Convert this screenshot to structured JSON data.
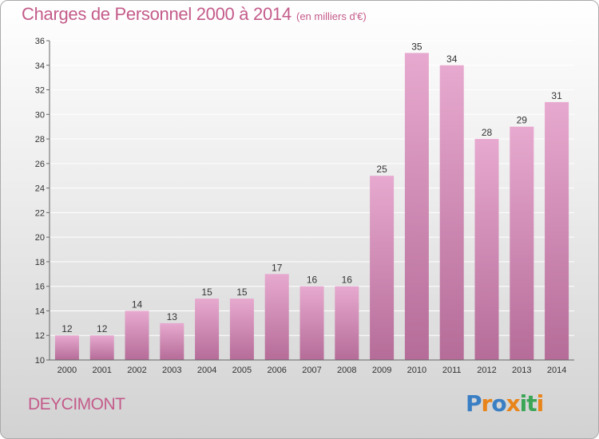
{
  "header": {
    "title": "Charges de Personnel 2000 à 2014",
    "subtitle": "(en milliers d'€)"
  },
  "footer": {
    "place_name": "DEYCIMONT",
    "logo_text": "Proxiti",
    "logo_colors": [
      "#3a7fc4",
      "#e8841a",
      "#3a7fc4",
      "#e8841a",
      "#3aa655",
      "#3aa655",
      "#e8841a"
    ]
  },
  "colors": {
    "bar_top": "#e7a9cf",
    "bar_bottom": "#b56c98",
    "axis": "#666666",
    "grid": "#ffffff",
    "text": "#333333",
    "accent": "#c45b8a"
  },
  "chart_data": {
    "type": "bar",
    "categories": [
      "2000",
      "2001",
      "2002",
      "2003",
      "2004",
      "2005",
      "2006",
      "2007",
      "2008",
      "2009",
      "2010",
      "2011",
      "2012",
      "2013",
      "2014"
    ],
    "values": [
      12,
      12,
      14,
      13,
      15,
      15,
      17,
      16,
      16,
      25,
      35,
      34,
      28,
      29,
      31
    ],
    "title": "Charges de Personnel 2000 à 2014",
    "subtitle": "(en milliers d'€)",
    "xlabel": "",
    "ylabel": "",
    "ylim": [
      10,
      36
    ],
    "yticks": [
      10,
      12,
      14,
      16,
      18,
      20,
      22,
      24,
      26,
      28,
      30,
      32,
      34,
      36
    ],
    "grid": true,
    "data_labels": true
  }
}
